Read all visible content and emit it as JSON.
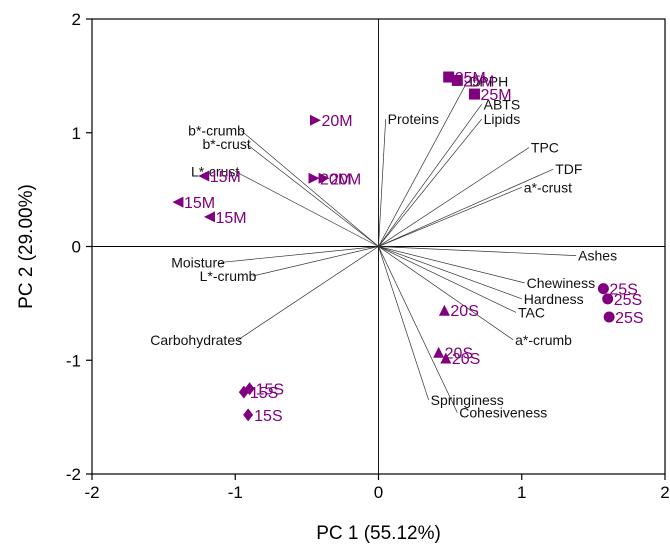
{
  "chart_data": {
    "type": "scatter",
    "subtype": "pca-biplot",
    "xlabel": "PC 1 (55.12%)",
    "ylabel": "PC 2 (29.00%)",
    "xlim": [
      -2,
      2
    ],
    "ylim": [
      -2,
      2
    ],
    "x_ticks": [
      -2,
      -1,
      0,
      1,
      2
    ],
    "y_ticks": [
      -2,
      -1,
      0,
      1,
      2
    ],
    "grid": false,
    "sample_color": "#800080",
    "loadings": [
      {
        "name": "DPPH",
        "x": 0.62,
        "y": 1.45
      },
      {
        "name": "ABTS",
        "x": 0.72,
        "y": 1.25
      },
      {
        "name": "Lipids",
        "x": 0.72,
        "y": 1.12
      },
      {
        "name": "TPC",
        "x": 1.05,
        "y": 0.87
      },
      {
        "name": "TDF",
        "x": 1.22,
        "y": 0.68
      },
      {
        "name": "a*-crust",
        "x": 1.0,
        "y": 0.52
      },
      {
        "name": "Proteins",
        "x": 0.05,
        "y": 1.12
      },
      {
        "name": "b*-crumb",
        "x": -0.96,
        "y": 1.02
      },
      {
        "name": "b*-crust",
        "x": -0.92,
        "y": 0.9
      },
      {
        "name": "L*-crust",
        "x": -1.0,
        "y": 0.66
      },
      {
        "name": "Moisture",
        "x": -1.1,
        "y": -0.14
      },
      {
        "name": "L*-crumb",
        "x": -0.88,
        "y": -0.26
      },
      {
        "name": "Carbohydrates",
        "x": -0.98,
        "y": -0.82
      },
      {
        "name": "Ashes",
        "x": 1.38,
        "y": -0.08
      },
      {
        "name": "Chewiness",
        "x": 1.02,
        "y": -0.32
      },
      {
        "name": "Hardness",
        "x": 1.0,
        "y": -0.46
      },
      {
        "name": "TAC",
        "x": 0.96,
        "y": -0.58
      },
      {
        "name": "a*-crumb",
        "x": 0.94,
        "y": -0.82
      },
      {
        "name": "Springiness",
        "x": 0.35,
        "y": -1.35
      },
      {
        "name": "Cohesiveness",
        "x": 0.55,
        "y": -1.46
      }
    ],
    "series": [
      {
        "name": "25M",
        "marker": "square",
        "points": [
          {
            "x": 0.49,
            "y": 1.49,
            "label": "25M"
          },
          {
            "x": 0.55,
            "y": 1.46,
            "label": "25M"
          },
          {
            "x": 0.67,
            "y": 1.34,
            "label": "25M"
          }
        ]
      },
      {
        "name": "20M",
        "marker": "triangle-right",
        "points": [
          {
            "x": -0.44,
            "y": 1.11,
            "label": "20M"
          },
          {
            "x": -0.45,
            "y": 0.6,
            "label": "20M"
          },
          {
            "x": -0.38,
            "y": 0.6,
            "label": "20M"
          }
        ]
      },
      {
        "name": "15M",
        "marker": "triangle-left",
        "points": [
          {
            "x": -1.22,
            "y": 0.62,
            "label": "15M"
          },
          {
            "x": -1.4,
            "y": 0.39,
            "label": "15M"
          },
          {
            "x": -1.18,
            "y": 0.26,
            "label": "15M"
          }
        ]
      },
      {
        "name": "25S",
        "marker": "circle",
        "points": [
          {
            "x": 1.57,
            "y": -0.37,
            "label": "25S"
          },
          {
            "x": 1.6,
            "y": -0.46,
            "label": "25S"
          },
          {
            "x": 1.61,
            "y": -0.62,
            "label": "25S"
          }
        ]
      },
      {
        "name": "20S",
        "marker": "triangle-up",
        "points": [
          {
            "x": 0.46,
            "y": -0.56,
            "label": "20S"
          },
          {
            "x": 0.42,
            "y": -0.93,
            "label": "20S"
          },
          {
            "x": 0.47,
            "y": -0.98,
            "label": "20S"
          }
        ]
      },
      {
        "name": "15S",
        "marker": "diamond",
        "points": [
          {
            "x": -0.94,
            "y": -1.28,
            "label": "15S"
          },
          {
            "x": -0.9,
            "y": -1.25,
            "label": "15S"
          },
          {
            "x": -0.91,
            "y": -1.48,
            "label": "15S"
          }
        ]
      }
    ]
  }
}
